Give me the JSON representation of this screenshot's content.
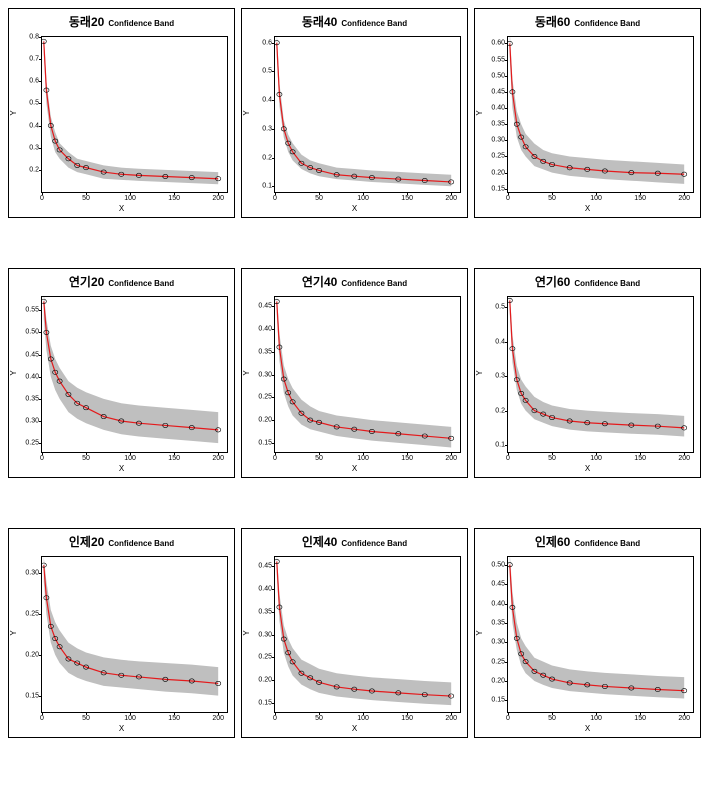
{
  "layout": {
    "rows": 3,
    "cols": 3
  },
  "common": {
    "xlabel": "X",
    "ylabel": "Y",
    "title_suffix": "Confidence Band",
    "xlim": [
      0,
      210
    ],
    "xticks": [
      0,
      50,
      100,
      150,
      200
    ],
    "line_color": "#e41a1c",
    "band_color": "#bfbfbf",
    "point_color": "#000000",
    "background_color": "#ffffff",
    "axis_color": "#000000",
    "line_width": 1.2,
    "point_radius": 1.4,
    "title_fontsize": 12,
    "sub_fontsize": 8,
    "tick_fontsize": 7,
    "label_fontsize": 8,
    "data_x": [
      2,
      5,
      10,
      15,
      20,
      30,
      40,
      50,
      70,
      90,
      110,
      140,
      170,
      200
    ]
  },
  "panels": [
    {
      "title": "동래20",
      "ylim": [
        0.1,
        0.8
      ],
      "yticks": [
        0.2,
        0.3,
        0.4,
        0.5,
        0.6,
        0.7,
        0.8
      ],
      "ytick_labels": [
        "0.2",
        "0.3",
        "0.4",
        "0.5",
        "0.6",
        "0.7",
        "0.8"
      ],
      "data_y": [
        0.78,
        0.56,
        0.4,
        0.33,
        0.29,
        0.25,
        0.22,
        0.21,
        0.19,
        0.18,
        0.175,
        0.17,
        0.165,
        0.16
      ],
      "band_lo": [
        0.72,
        0.5,
        0.35,
        0.28,
        0.25,
        0.21,
        0.19,
        0.18,
        0.16,
        0.155,
        0.15,
        0.145,
        0.14,
        0.135
      ],
      "band_hi": [
        0.82,
        0.6,
        0.44,
        0.37,
        0.32,
        0.28,
        0.25,
        0.24,
        0.22,
        0.21,
        0.205,
        0.2,
        0.195,
        0.19
      ]
    },
    {
      "title": "동래40",
      "ylim": [
        0.08,
        0.62
      ],
      "yticks": [
        0.1,
        0.2,
        0.3,
        0.4,
        0.5,
        0.6
      ],
      "ytick_labels": [
        "0.1",
        "0.2",
        "0.3",
        "0.4",
        "0.5",
        "0.6"
      ],
      "data_y": [
        0.6,
        0.42,
        0.3,
        0.25,
        0.22,
        0.18,
        0.165,
        0.155,
        0.14,
        0.135,
        0.13,
        0.125,
        0.12,
        0.115
      ],
      "band_lo": [
        0.55,
        0.38,
        0.27,
        0.22,
        0.19,
        0.16,
        0.145,
        0.135,
        0.125,
        0.12,
        0.115,
        0.11,
        0.105,
        0.1
      ],
      "band_hi": [
        0.64,
        0.46,
        0.33,
        0.28,
        0.25,
        0.21,
        0.19,
        0.18,
        0.165,
        0.16,
        0.155,
        0.15,
        0.145,
        0.14
      ]
    },
    {
      "title": "동래60",
      "ylim": [
        0.14,
        0.62
      ],
      "yticks": [
        0.15,
        0.2,
        0.25,
        0.3,
        0.35,
        0.4,
        0.45,
        0.5,
        0.55,
        0.6
      ],
      "ytick_labels": [
        "0.15",
        "0.20",
        "0.25",
        "0.30",
        "0.35",
        "0.40",
        "0.45",
        "0.50",
        "0.55",
        "0.60"
      ],
      "data_y": [
        0.6,
        0.45,
        0.35,
        0.31,
        0.28,
        0.25,
        0.235,
        0.225,
        0.215,
        0.21,
        0.205,
        0.2,
        0.198,
        0.195
      ],
      "band_lo": [
        0.55,
        0.4,
        0.31,
        0.27,
        0.25,
        0.22,
        0.21,
        0.2,
        0.19,
        0.185,
        0.18,
        0.175,
        0.17,
        0.165
      ],
      "band_hi": [
        0.64,
        0.49,
        0.39,
        0.35,
        0.32,
        0.29,
        0.27,
        0.26,
        0.25,
        0.245,
        0.24,
        0.235,
        0.23,
        0.225
      ]
    },
    {
      "title": "연기20",
      "ylim": [
        0.23,
        0.58
      ],
      "yticks": [
        0.25,
        0.3,
        0.35,
        0.4,
        0.45,
        0.5,
        0.55
      ],
      "ytick_labels": [
        "0.25",
        "0.30",
        "0.35",
        "0.40",
        "0.45",
        "0.50",
        "0.55"
      ],
      "data_y": [
        0.57,
        0.5,
        0.44,
        0.41,
        0.39,
        0.36,
        0.34,
        0.33,
        0.31,
        0.3,
        0.295,
        0.29,
        0.285,
        0.28
      ],
      "band_lo": [
        0.53,
        0.46,
        0.4,
        0.37,
        0.35,
        0.32,
        0.305,
        0.295,
        0.28,
        0.27,
        0.265,
        0.26,
        0.255,
        0.25
      ],
      "band_hi": [
        0.59,
        0.53,
        0.47,
        0.44,
        0.42,
        0.39,
        0.375,
        0.365,
        0.35,
        0.34,
        0.335,
        0.33,
        0.325,
        0.32
      ]
    },
    {
      "title": "연기40",
      "ylim": [
        0.13,
        0.47
      ],
      "yticks": [
        0.15,
        0.2,
        0.25,
        0.3,
        0.35,
        0.4,
        0.45
      ],
      "ytick_labels": [
        "0.15",
        "0.20",
        "0.25",
        "0.30",
        "0.35",
        "0.40",
        "0.45"
      ],
      "data_y": [
        0.46,
        0.36,
        0.29,
        0.26,
        0.24,
        0.215,
        0.2,
        0.195,
        0.185,
        0.18,
        0.175,
        0.17,
        0.165,
        0.16
      ],
      "band_lo": [
        0.43,
        0.33,
        0.26,
        0.23,
        0.21,
        0.19,
        0.18,
        0.175,
        0.165,
        0.16,
        0.155,
        0.15,
        0.145,
        0.14
      ],
      "band_hi": [
        0.48,
        0.39,
        0.32,
        0.29,
        0.27,
        0.245,
        0.23,
        0.22,
        0.21,
        0.205,
        0.2,
        0.195,
        0.19,
        0.185
      ]
    },
    {
      "title": "연기60",
      "ylim": [
        0.08,
        0.53
      ],
      "yticks": [
        0.1,
        0.2,
        0.3,
        0.4,
        0.5
      ],
      "ytick_labels": [
        "0.1",
        "0.2",
        "0.3",
        "0.4",
        "0.5"
      ],
      "data_y": [
        0.52,
        0.38,
        0.29,
        0.25,
        0.23,
        0.2,
        0.19,
        0.18,
        0.17,
        0.165,
        0.162,
        0.158,
        0.155,
        0.15
      ],
      "band_lo": [
        0.48,
        0.34,
        0.26,
        0.22,
        0.2,
        0.175,
        0.165,
        0.155,
        0.145,
        0.14,
        0.137,
        0.133,
        0.13,
        0.125
      ],
      "band_hi": [
        0.55,
        0.42,
        0.33,
        0.29,
        0.27,
        0.24,
        0.225,
        0.215,
        0.205,
        0.2,
        0.197,
        0.193,
        0.19,
        0.185
      ]
    },
    {
      "title": "인제20",
      "ylim": [
        0.13,
        0.32
      ],
      "yticks": [
        0.15,
        0.2,
        0.25,
        0.3
      ],
      "ytick_labels": [
        "0.15",
        "0.20",
        "0.25",
        "0.30"
      ],
      "data_y": [
        0.31,
        0.27,
        0.235,
        0.22,
        0.21,
        0.195,
        0.19,
        0.185,
        0.178,
        0.175,
        0.173,
        0.17,
        0.168,
        0.165
      ],
      "band_lo": [
        0.29,
        0.25,
        0.215,
        0.2,
        0.19,
        0.178,
        0.172,
        0.168,
        0.162,
        0.16,
        0.158,
        0.155,
        0.153,
        0.15
      ],
      "band_hi": [
        0.32,
        0.29,
        0.255,
        0.24,
        0.23,
        0.215,
        0.208,
        0.203,
        0.197,
        0.194,
        0.192,
        0.19,
        0.188,
        0.185
      ]
    },
    {
      "title": "인제40",
      "ylim": [
        0.13,
        0.47
      ],
      "yticks": [
        0.15,
        0.2,
        0.25,
        0.3,
        0.35,
        0.4,
        0.45
      ],
      "ytick_labels": [
        "0.15",
        "0.20",
        "0.25",
        "0.30",
        "0.35",
        "0.40",
        "0.45"
      ],
      "data_y": [
        0.46,
        0.36,
        0.29,
        0.26,
        0.24,
        0.215,
        0.205,
        0.195,
        0.185,
        0.18,
        0.176,
        0.172,
        0.168,
        0.165
      ],
      "band_lo": [
        0.43,
        0.33,
        0.26,
        0.23,
        0.21,
        0.19,
        0.18,
        0.172,
        0.164,
        0.16,
        0.156,
        0.152,
        0.148,
        0.145
      ],
      "band_hi": [
        0.48,
        0.39,
        0.32,
        0.29,
        0.27,
        0.245,
        0.235,
        0.225,
        0.215,
        0.21,
        0.206,
        0.202,
        0.198,
        0.195
      ]
    },
    {
      "title": "인제60",
      "ylim": [
        0.12,
        0.52
      ],
      "yticks": [
        0.15,
        0.2,
        0.25,
        0.3,
        0.35,
        0.4,
        0.45,
        0.5
      ],
      "ytick_labels": [
        "0.15",
        "0.20",
        "0.25",
        "0.30",
        "0.35",
        "0.40",
        "0.45",
        "0.50"
      ],
      "data_y": [
        0.5,
        0.39,
        0.31,
        0.27,
        0.25,
        0.225,
        0.215,
        0.205,
        0.195,
        0.19,
        0.186,
        0.182,
        0.178,
        0.175
      ],
      "band_lo": [
        0.46,
        0.35,
        0.28,
        0.24,
        0.22,
        0.2,
        0.19,
        0.182,
        0.174,
        0.17,
        0.166,
        0.162,
        0.158,
        0.155
      ],
      "band_hi": [
        0.53,
        0.43,
        0.35,
        0.31,
        0.29,
        0.26,
        0.25,
        0.24,
        0.23,
        0.225,
        0.221,
        0.217,
        0.213,
        0.21
      ]
    }
  ]
}
